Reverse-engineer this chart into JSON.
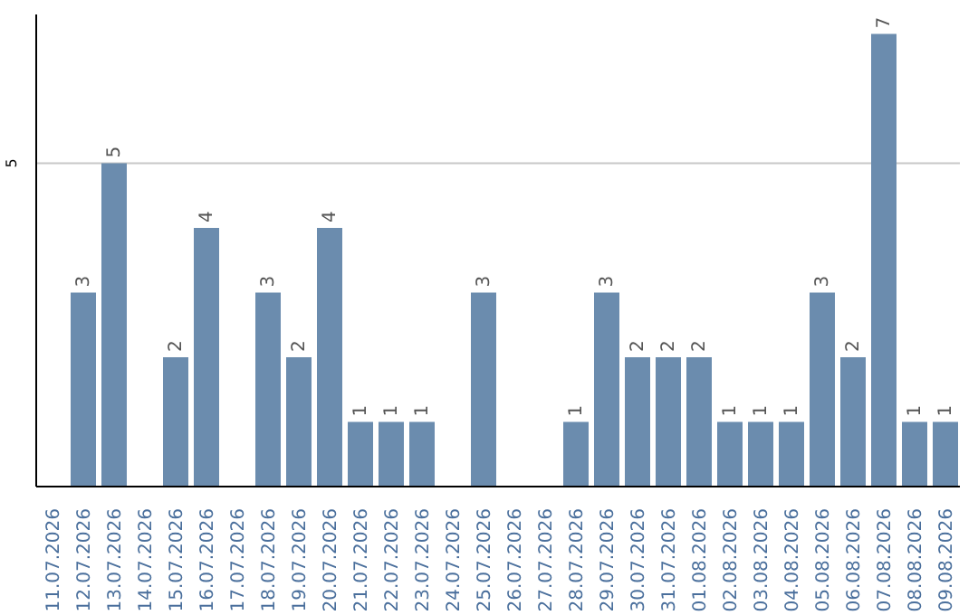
{
  "chart_data": {
    "type": "bar",
    "categories": [
      "11.07.2026",
      "12.07.2026",
      "13.07.2026",
      "14.07.2026",
      "15.07.2026",
      "16.07.2026",
      "17.07.2026",
      "18.07.2026",
      "19.07.2026",
      "20.07.2026",
      "21.07.2026",
      "22.07.2026",
      "23.07.2026",
      "24.07.2026",
      "25.07.2026",
      "26.07.2026",
      "27.07.2026",
      "28.07.2026",
      "29.07.2026",
      "30.07.2026",
      "31.07.2026",
      "01.08.2026",
      "02.08.2026",
      "03.08.2026",
      "04.08.2026",
      "05.08.2026",
      "06.08.2026",
      "07.08.2026",
      "08.08.2026",
      "09.08.2026"
    ],
    "values": [
      0,
      3,
      5,
      0,
      2,
      4,
      0,
      3,
      2,
      4,
      1,
      1,
      1,
      0,
      3,
      0,
      0,
      1,
      3,
      2,
      2,
      2,
      1,
      1,
      1,
      3,
      2,
      7,
      1,
      1
    ],
    "value_labels": [
      null,
      "3",
      "5",
      null,
      "2",
      "4",
      null,
      "3",
      "2",
      "4",
      "1",
      "1",
      "1",
      null,
      "3",
      null,
      null,
      "1",
      "3",
      "2",
      "2",
      "2",
      "1",
      "1",
      "1",
      "3",
      "2",
      "7",
      "1",
      "1"
    ],
    "color": "#6b8cae",
    "ylim": [
      0,
      7.3
    ],
    "yticks": [
      5
    ],
    "grid": "y"
  }
}
